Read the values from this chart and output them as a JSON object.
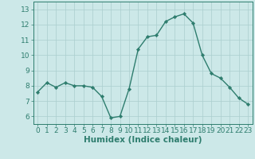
{
  "x": [
    0,
    1,
    2,
    3,
    4,
    5,
    6,
    7,
    8,
    9,
    10,
    11,
    12,
    13,
    14,
    15,
    16,
    17,
    18,
    19,
    20,
    21,
    22,
    23
  ],
  "y": [
    7.6,
    8.2,
    7.9,
    8.2,
    8.0,
    8.0,
    7.9,
    7.3,
    5.9,
    6.0,
    7.8,
    10.4,
    11.2,
    11.3,
    12.2,
    12.5,
    12.7,
    12.1,
    10.0,
    8.8,
    8.5,
    7.9,
    7.2,
    6.8
  ],
  "title": "",
  "xlabel": "Humidex (Indice chaleur)",
  "ylabel": "",
  "xlim": [
    -0.5,
    23.5
  ],
  "ylim": [
    5.5,
    13.5
  ],
  "yticks": [
    6,
    7,
    8,
    9,
    10,
    11,
    12,
    13
  ],
  "xticks": [
    0,
    1,
    2,
    3,
    4,
    5,
    6,
    7,
    8,
    9,
    10,
    11,
    12,
    13,
    14,
    15,
    16,
    17,
    18,
    19,
    20,
    21,
    22,
    23
  ],
  "line_color": "#2e7d6e",
  "marker_color": "#2e7d6e",
  "bg_color": "#cce8e8",
  "grid_color": "#aacece",
  "axis_color": "#2e7d6e",
  "tick_label_color": "#2e7d6e",
  "xlabel_color": "#2e7d6e",
  "xlabel_fontsize": 7.5,
  "tick_fontsize": 6.5,
  "linewidth": 1.0,
  "markersize": 2.2
}
